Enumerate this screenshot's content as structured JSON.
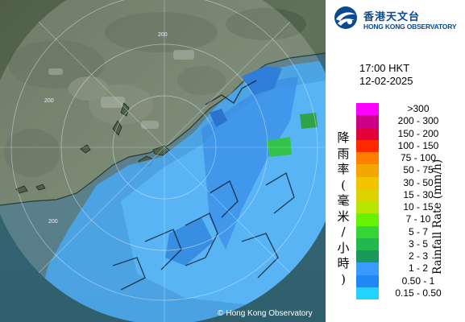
{
  "map": {
    "copyright": "Hong Kong Observatory",
    "copyright_symbol": "©",
    "range_rings": [
      {
        "label": "200"
      },
      {
        "label": "200"
      },
      {
        "label": "200"
      }
    ]
  },
  "logo": {
    "name_zh": "香港天文台",
    "name_en": "HONG KONG OBSERVATORY",
    "icon": "hko-logo-icon"
  },
  "timestamp": {
    "time": "17:00 HKT",
    "date": "12-02-2025"
  },
  "legend": {
    "title_zh": "降雨率(毫米/小時)",
    "title_en": "Rainfall Rate (mm/h)",
    "items": [
      {
        "label": ">300",
        "color": "#ff00ff"
      },
      {
        "label": "200 - 300",
        "color": "#cc0088"
      },
      {
        "label": "150 - 200",
        "color": "#e4003a"
      },
      {
        "label": "100 - 150",
        "color": "#ff2a00"
      },
      {
        "label": "75 - 100",
        "color": "#ff7f00"
      },
      {
        "label": "50 - 75",
        "color": "#f4a500"
      },
      {
        "label": "30 - 50",
        "color": "#f2c400"
      },
      {
        "label": "15 - 30",
        "color": "#dcd200"
      },
      {
        "label": "10 - 15",
        "color": "#b8e600"
      },
      {
        "label": "7 - 10",
        "color": "#66f200"
      },
      {
        "label": "5 - 7",
        "color": "#33d633"
      },
      {
        "label": "3 - 5",
        "color": "#22b84e"
      },
      {
        "label": "2 - 3",
        "color": "#18995a"
      },
      {
        "label": "1 - 2",
        "color": "#3a9aff"
      },
      {
        "label": "0.50 - 1",
        "color": "#1e88f5"
      },
      {
        "label": "0.15 - 0.50",
        "color": "#22d2ff"
      }
    ]
  }
}
